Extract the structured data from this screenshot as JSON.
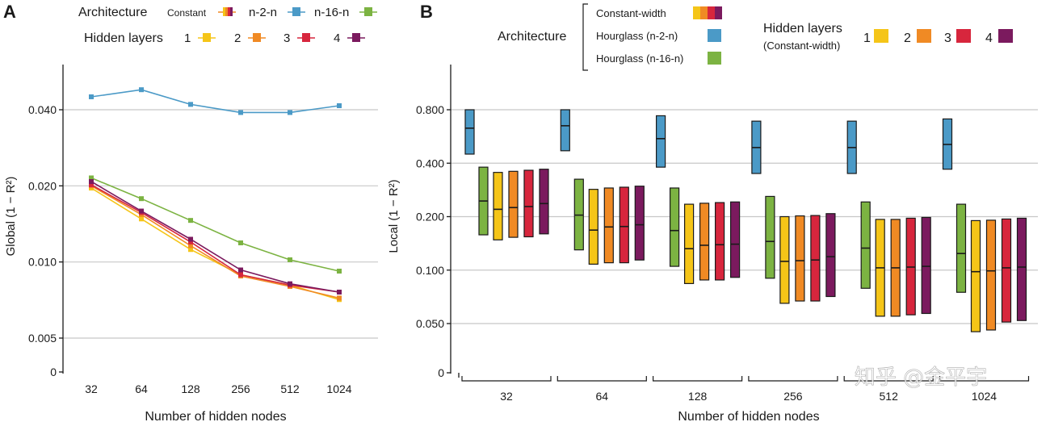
{
  "chart_data": [
    {
      "panel_label": "A",
      "type": "line",
      "xlabel": "Number of hidden nodes",
      "ylabel": "Global (1 − R²)",
      "categories": [
        "32",
        "64",
        "128",
        "256",
        "512",
        "1024"
      ],
      "y_ticks": [
        {
          "value": 0,
          "label": "0"
        },
        {
          "value": 0.005,
          "label": "0.005"
        },
        {
          "value": 0.01,
          "label": "0.010"
        },
        {
          "value": 0.02,
          "label": "0.020"
        },
        {
          "value": 0.04,
          "label": "0.040"
        }
      ],
      "y_scale": "log (broken at 0)",
      "series": [
        {
          "name": "n-2-n",
          "color": "#4b9ac7",
          "values": [
            0.045,
            0.048,
            0.042,
            0.039,
            0.039,
            0.0415
          ]
        },
        {
          "name": "n-16-n",
          "color": "#7cb342",
          "values": [
            0.0215,
            0.0178,
            0.0146,
            0.0119,
            0.0102,
            0.0092
          ]
        },
        {
          "name": "Constant 1",
          "color": "#f5c518",
          "values": [
            0.0196,
            0.0148,
            0.0112,
            0.0089,
            0.0081,
            0.0071
          ]
        },
        {
          "name": "Constant 2",
          "color": "#f08a24",
          "values": [
            0.02,
            0.0154,
            0.0116,
            0.0088,
            0.008,
            0.0072
          ]
        },
        {
          "name": "Constant 3",
          "color": "#d7263d",
          "values": [
            0.0202,
            0.0157,
            0.012,
            0.0089,
            0.0081,
            0.0076
          ]
        },
        {
          "name": "Constant 4",
          "color": "#7b1a5e",
          "values": [
            0.0208,
            0.0159,
            0.0123,
            0.0093,
            0.0082,
            0.0076
          ]
        }
      ],
      "legend": {
        "architecture_title": "Architecture",
        "architecture_items": [
          "Constant",
          "n-2-n",
          "n-16-n"
        ],
        "hidden_title": "Hidden layers",
        "hidden_items": [
          "1",
          "2",
          "3",
          "4"
        ]
      }
    },
    {
      "panel_label": "B",
      "type": "box",
      "xlabel": "Number of hidden nodes",
      "ylabel": "Local (1 − R²)",
      "categories": [
        "32",
        "64",
        "128",
        "256",
        "512",
        "1024"
      ],
      "y_ticks": [
        {
          "value": 0,
          "label": "0"
        },
        {
          "value": 0.05,
          "label": "0.050"
        },
        {
          "value": 0.1,
          "label": "0.100"
        },
        {
          "value": 0.2,
          "label": "0.200"
        },
        {
          "value": 0.4,
          "label": "0.400"
        },
        {
          "value": 0.8,
          "label": "0.800"
        }
      ],
      "y_scale": "log (broken at 0)",
      "series_order": [
        "Hourglass (n-2-n)",
        "Hourglass (n-16-n)",
        "Constant 1",
        "Constant 2",
        "Constant 3",
        "Constant 4"
      ],
      "series_colors": [
        "#4b9ac7",
        "#7cb342",
        "#f5c518",
        "#f08a24",
        "#d7263d",
        "#7b1a5e"
      ],
      "boxes": [
        [
          [
            0.45,
            0.63,
            0.8
          ],
          [
            0.158,
            0.245,
            0.38
          ],
          [
            0.148,
            0.22,
            0.355
          ],
          [
            0.153,
            0.225,
            0.36
          ],
          [
            0.154,
            0.228,
            0.365
          ],
          [
            0.16,
            0.237,
            0.37
          ]
        ],
        [
          [
            0.47,
            0.65,
            0.8
          ],
          [
            0.13,
            0.204,
            0.325
          ],
          [
            0.108,
            0.168,
            0.285
          ],
          [
            0.11,
            0.175,
            0.29
          ],
          [
            0.11,
            0.176,
            0.293
          ],
          [
            0.114,
            0.18,
            0.297
          ]
        ],
        [
          [
            0.38,
            0.55,
            0.74
          ],
          [
            0.105,
            0.167,
            0.29
          ],
          [
            0.084,
            0.132,
            0.235
          ],
          [
            0.088,
            0.138,
            0.238
          ],
          [
            0.088,
            0.139,
            0.24
          ],
          [
            0.091,
            0.14,
            0.242
          ]
        ],
        [
          [
            0.35,
            0.49,
            0.69
          ],
          [
            0.09,
            0.145,
            0.26
          ],
          [
            0.065,
            0.112,
            0.2
          ],
          [
            0.067,
            0.113,
            0.202
          ],
          [
            0.067,
            0.114,
            0.203
          ],
          [
            0.071,
            0.119,
            0.208
          ]
        ],
        [
          [
            0.35,
            0.49,
            0.69
          ],
          [
            0.079,
            0.133,
            0.242
          ],
          [
            0.055,
            0.103,
            0.193
          ],
          [
            0.055,
            0.103,
            0.193
          ],
          [
            0.056,
            0.104,
            0.196
          ],
          [
            0.057,
            0.105,
            0.198
          ]
        ],
        [
          [
            0.37,
            0.51,
            0.71
          ],
          [
            0.075,
            0.124,
            0.235
          ],
          [
            0.045,
            0.098,
            0.19
          ],
          [
            0.046,
            0.099,
            0.191
          ],
          [
            0.051,
            0.103,
            0.194
          ],
          [
            0.052,
            0.104,
            0.196
          ]
        ]
      ],
      "legend": {
        "architecture_title": "Architecture",
        "architecture_items": [
          "Constant-width",
          "Hourglass (n-2-n)",
          "Hourglass (n-16-n)"
        ],
        "hidden_title": "Hidden layers",
        "hidden_subtitle": "(Constant-width)",
        "hidden_items": [
          "1",
          "2",
          "3",
          "4"
        ]
      }
    }
  ],
  "watermark": "知乎 @金平宇"
}
